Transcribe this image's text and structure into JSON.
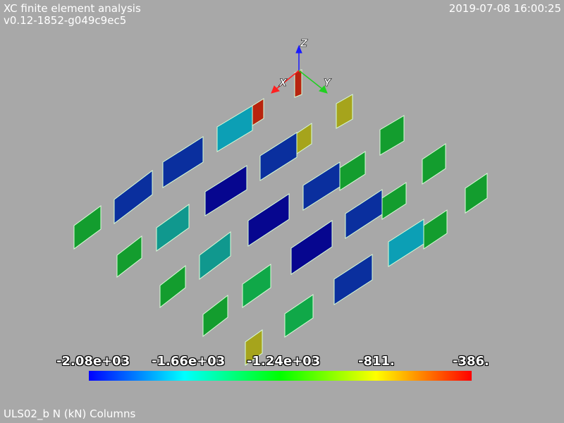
{
  "header": {
    "app_title": "XC finite element analysis",
    "version": "v0.12-1852-g049c9ec5",
    "timestamp": "2019-07-08 16:00:25"
  },
  "footer": {
    "caption": "ULS02_b N (kN) Columns"
  },
  "axes_triad": {
    "z_label": "Z",
    "x_label": "X",
    "y_label": "Y",
    "colors": {
      "z": "#1a1aff",
      "x": "#ff2020",
      "y": "#20d020"
    }
  },
  "colorbar": {
    "tick_labels": [
      "-2.08e+03",
      "-1.66e+03",
      "-1.24e+03",
      "-811.",
      "-386."
    ],
    "min": -2080,
    "max": -386,
    "colors": [
      "#0000ff",
      "#00ffff",
      "#00ff00",
      "#ffff00",
      "#ff0000"
    ]
  },
  "panel_colors": {
    "dark_blue": "#06068f",
    "blue": "#0a2f9e",
    "teal": "#10988e",
    "cyan": "#0c9fb5",
    "green": "#139d2e",
    "mid_green": "#10a848",
    "olive": "#a6a41c",
    "red": "#b8240e",
    "edge": "#d9ffd9"
  }
}
